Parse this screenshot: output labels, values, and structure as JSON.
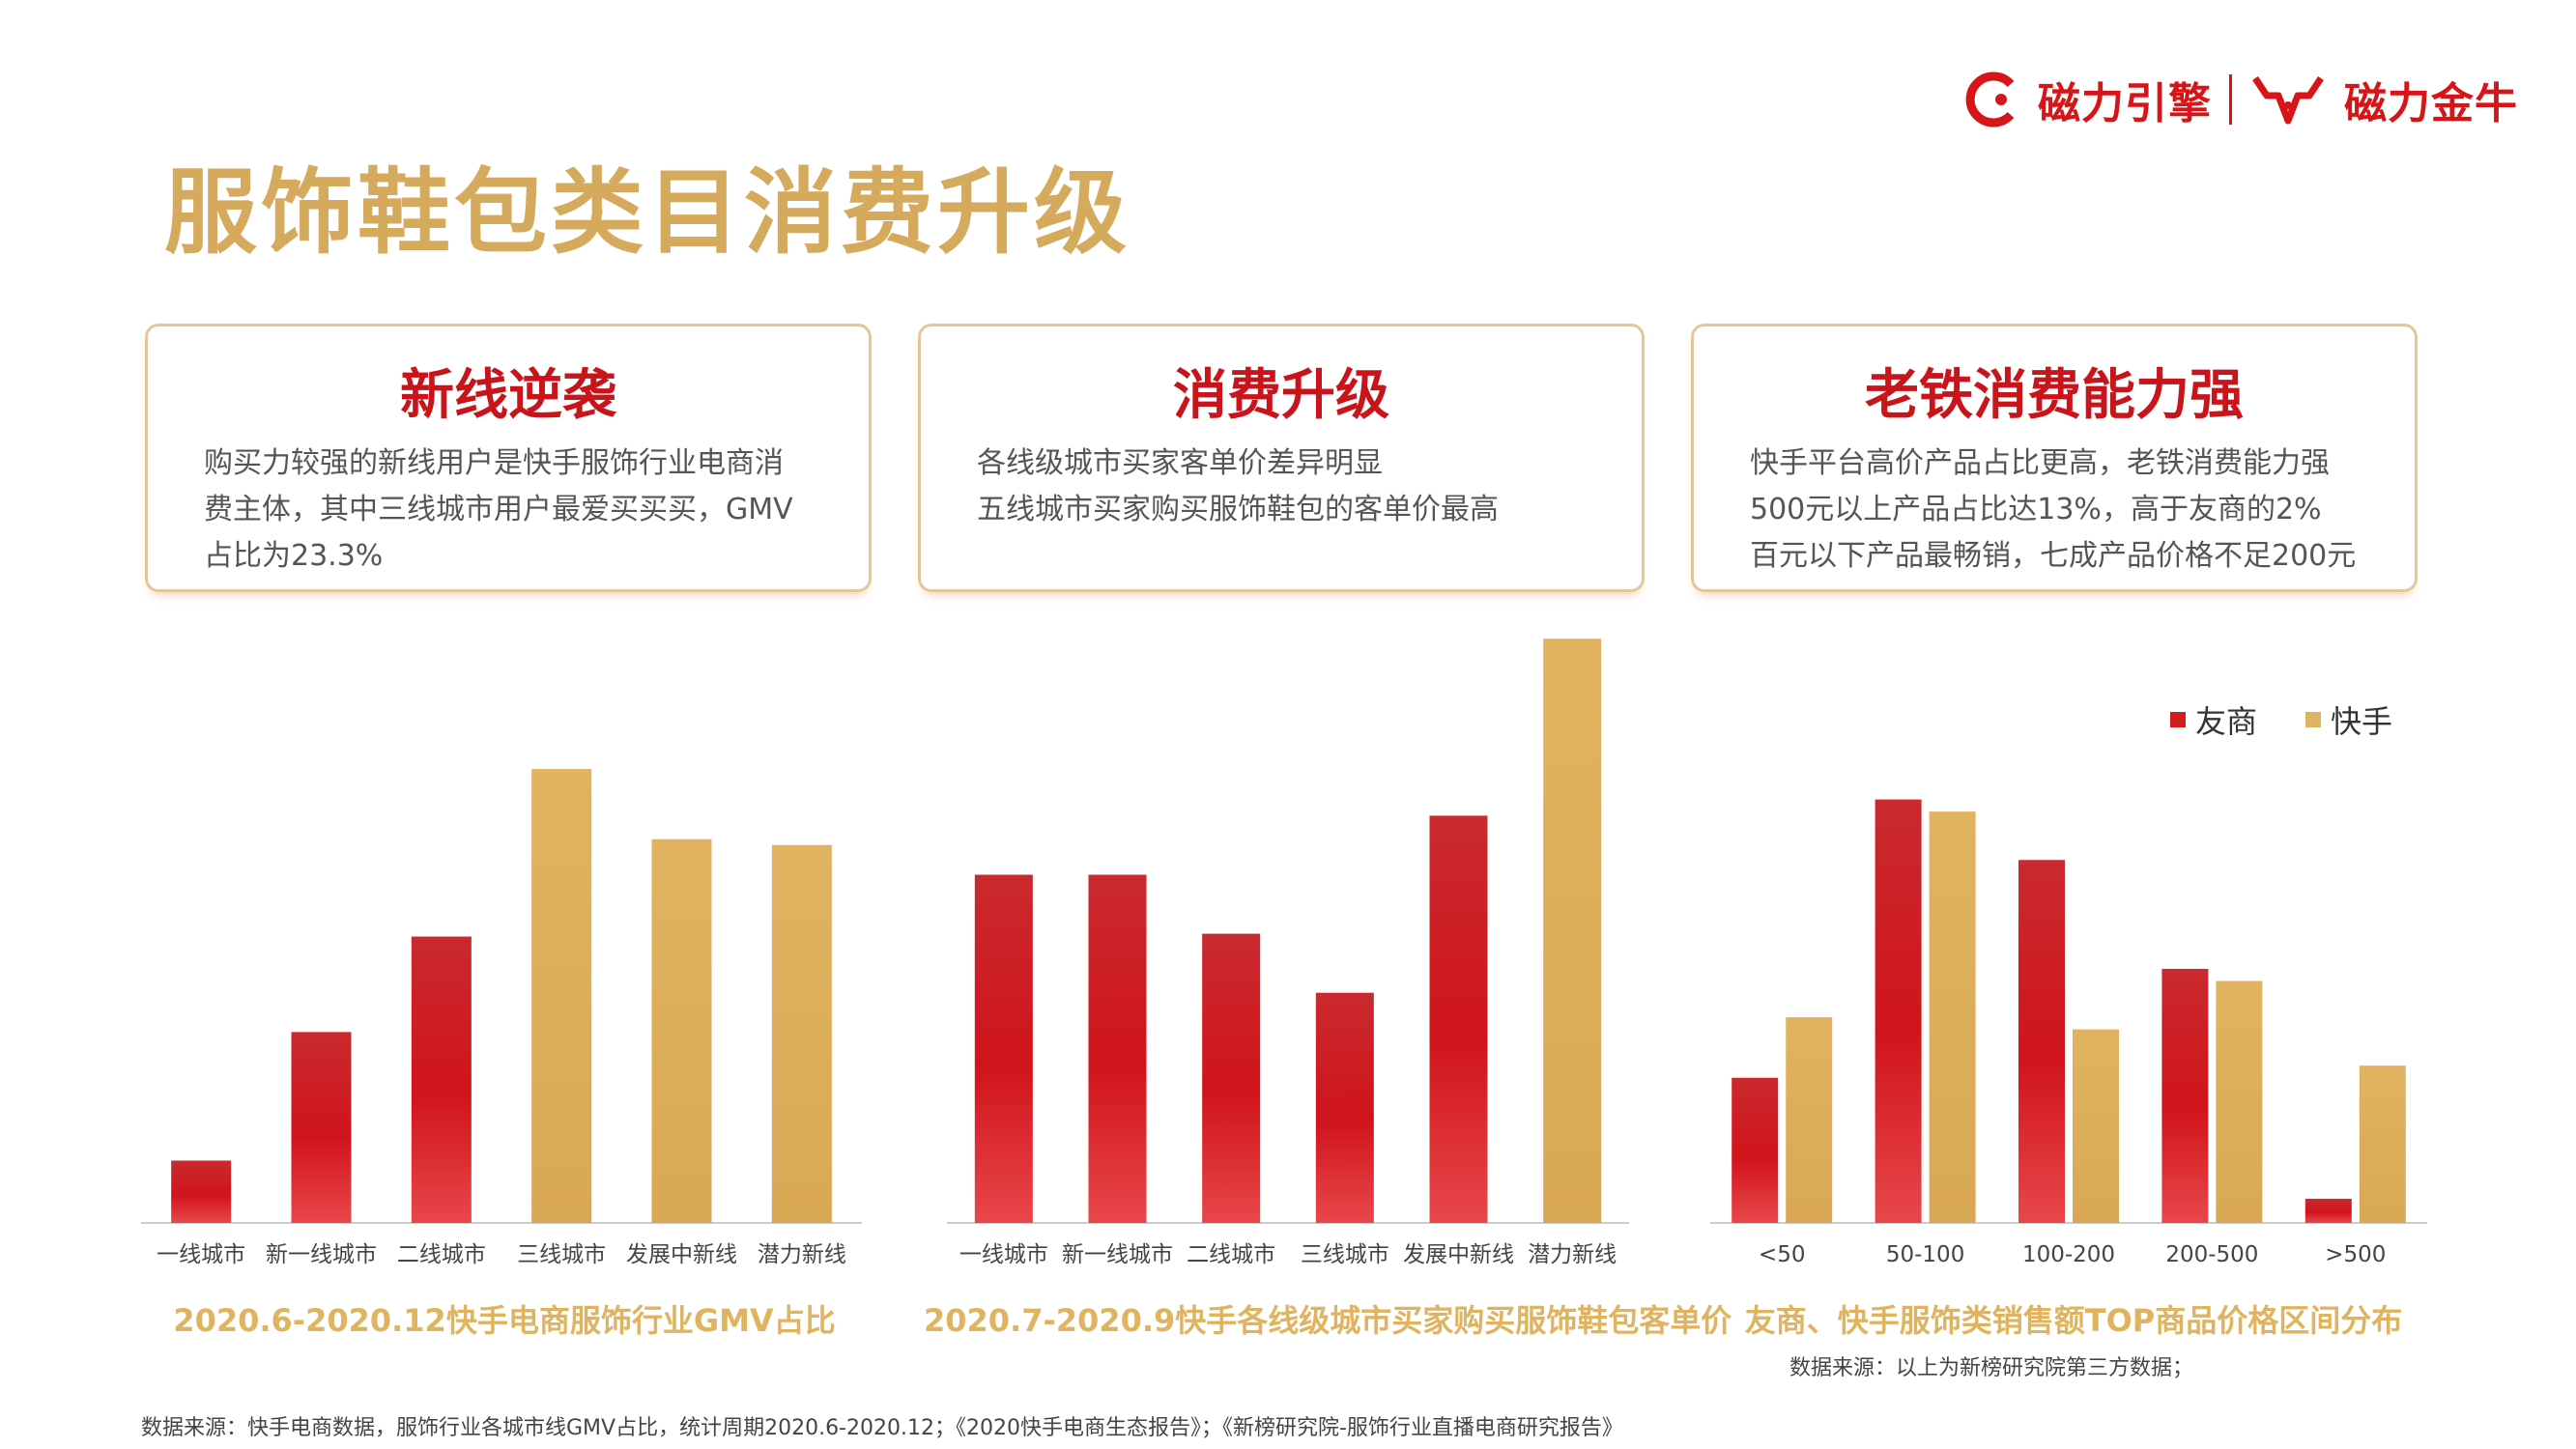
{
  "brand": {
    "logo1": "磁力引擎",
    "logo2": "磁力金牛",
    "colors": {
      "red": "#c8141a",
      "gold": "#d6aa5c",
      "red_bar": "#d31c1f",
      "gold_bar": "#e0b35f"
    }
  },
  "title": "服饰鞋包类目消费升级",
  "cards": [
    {
      "title": "新线逆袭",
      "lines": [
        "购买力较强的新线用户是快手服饰行业电商消",
        "费主体，其中三线城市用户最爱买买买，GMV",
        "占比为23.3%"
      ]
    },
    {
      "title": "消费升级",
      "lines": [
        "各线级城市买家客单价差异明显",
        "五线城市买家购买服饰鞋包的客单价最高"
      ]
    },
    {
      "title": "老铁消费能力强",
      "lines": [
        "快手平台高价产品占比更高，老铁消费能力强",
        "500元以上产品占比达13%，高于友商的2%",
        "百元以下产品最畅销，七成产品价格不足200元"
      ]
    }
  ],
  "chart_data": [
    {
      "type": "bar",
      "title": "2020.6-2020.12快手电商服饰行业GMV占比",
      "categories": [
        "一线城市",
        "新一线城市",
        "二线城市",
        "三线城市",
        "发展中新线",
        "潜力新线"
      ],
      "values": [
        3.2,
        9.8,
        14.7,
        23.3,
        19.7,
        19.4
      ],
      "bar_colors": [
        "red",
        "red",
        "red",
        "gold",
        "gold",
        "gold"
      ],
      "ylim": [
        0,
        24
      ]
    },
    {
      "type": "bar",
      "title": "2020.7-2020.9快手各线级城市买家购买服饰鞋包客单价",
      "categories": [
        "一线城市",
        "新一线城市",
        "二线城市",
        "三线城市",
        "发展中新线",
        "潜力新线"
      ],
      "values": [
        59,
        59,
        49,
        39,
        69,
        99
      ],
      "bar_colors": [
        "red",
        "red",
        "red",
        "red",
        "red",
        "gold"
      ],
      "ylim": [
        0,
        100
      ]
    },
    {
      "type": "bar",
      "title": "友商、快手服饰类销售额TOP商品价格区间分布",
      "categories": [
        "<50",
        "50-100",
        "100-200",
        "200-500",
        ">500"
      ],
      "series": [
        {
          "name": "友商",
          "values": [
            12,
            35,
            30,
            21,
            2
          ],
          "color": "red"
        },
        {
          "name": "快手",
          "values": [
            17,
            34,
            16,
            20,
            13
          ],
          "color": "gold"
        }
      ],
      "legend_position": "top-right",
      "ylim": [
        0,
        40
      ]
    }
  ],
  "chart_note": "数据来源：以上为新榜研究院第三方数据；",
  "footer": "数据来源：快手电商数据，服饰行业各城市线GMV占比，统计周期2020.6-2020.12；《2020快手电商生态报告》；《新榜研究院-服饰行业直播电商研究报告》"
}
